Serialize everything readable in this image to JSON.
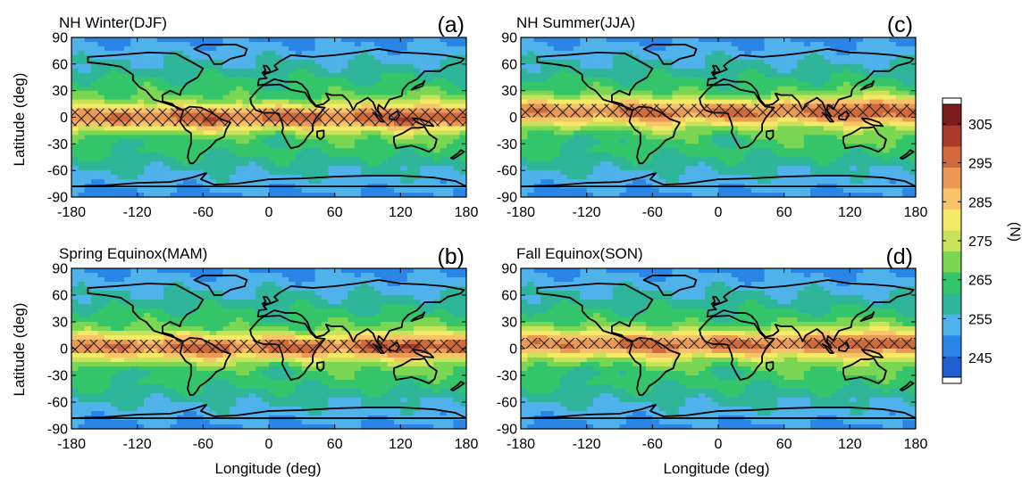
{
  "chart_data": [
    {
      "type": "heatmap",
      "id": "a",
      "title": "NH Winter(DJF)",
      "panel_label": "(a)",
      "xlabel": "",
      "ylabel": "Latitude (deg)",
      "xlim": [
        -180,
        180
      ],
      "ylim": [
        -90,
        90
      ],
      "xticks": [
        "-180",
        "-120",
        "-60",
        "0",
        "60",
        "120",
        "180"
      ],
      "yticks": [
        "90",
        "60",
        "30",
        "0",
        "-30",
        "-60",
        "-90"
      ],
      "itcz_band_lat": [
        -10,
        10
      ]
    },
    {
      "type": "heatmap",
      "id": "b",
      "title": "Spring Equinox(MAM)",
      "panel_label": "(b)",
      "xlabel": "Longitude (deg)",
      "ylabel": "Latitude (deg)",
      "xlim": [
        -180,
        180
      ],
      "ylim": [
        -90,
        90
      ],
      "xticks": [
        "-180",
        "-120",
        "-60",
        "0",
        "60",
        "120",
        "180"
      ],
      "yticks": [
        "90",
        "60",
        "30",
        "0",
        "-30",
        "-60",
        "-90"
      ],
      "itcz_band_lat": [
        -5,
        10
      ]
    },
    {
      "type": "heatmap",
      "id": "c",
      "title": "NH Summer(JJA)",
      "panel_label": "(c)",
      "xlabel": "",
      "ylabel": "",
      "xlim": [
        -180,
        180
      ],
      "ylim": [
        -90,
        90
      ],
      "xticks": [
        "-180",
        "-120",
        "-60",
        "0",
        "60",
        "120",
        "180"
      ],
      "yticks": [
        "90",
        "60",
        "30",
        "0",
        "-30",
        "-60",
        "-90"
      ],
      "itcz_band_lat": [
        0,
        15
      ]
    },
    {
      "type": "heatmap",
      "id": "d",
      "title": "Fall Equinox(SON)",
      "panel_label": "(d)",
      "xlabel": "Longitude (deg)",
      "ylabel": "",
      "xlim": [
        -180,
        180
      ],
      "ylim": [
        -90,
        90
      ],
      "xticks": [
        "-180",
        "-120",
        "-60",
        "0",
        "60",
        "120",
        "180"
      ],
      "yticks": [
        "90",
        "60",
        "30",
        "0",
        "-30",
        "-60",
        "-90"
      ],
      "itcz_band_lat": [
        0,
        12
      ]
    }
  ],
  "colorbar": {
    "label": "(N)",
    "range": [
      240,
      310
    ],
    "ticks": [
      "305",
      "295",
      "285",
      "275",
      "265",
      "255",
      "245"
    ],
    "colors": [
      "#1f5fd0",
      "#2a85e6",
      "#4fb2ea",
      "#2fb59a",
      "#34c46a",
      "#7ad653",
      "#c8e35a",
      "#f4ea66",
      "#f8c46a",
      "#eb9a55",
      "#d06a3c",
      "#a83a2a",
      "#7d1c1c"
    ]
  }
}
